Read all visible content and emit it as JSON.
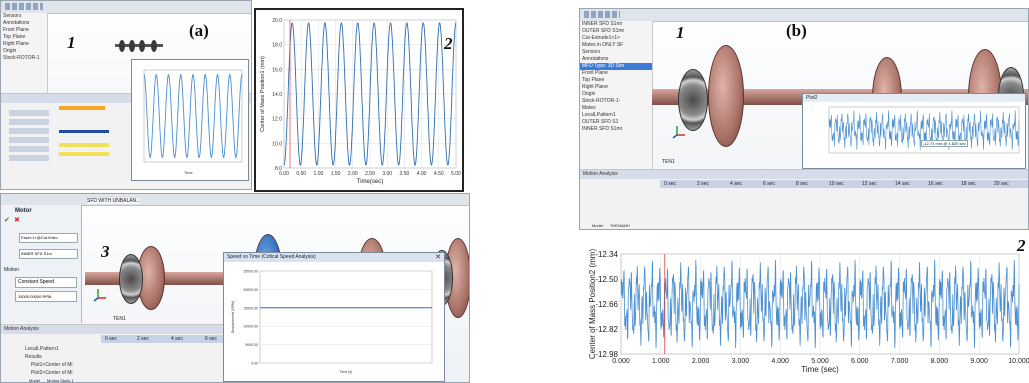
{
  "panels": {
    "a": {
      "label": "(a)",
      "step1": "1",
      "step2": "2",
      "step3": "3",
      "inset_plot_x_label": "Time",
      "plot2": {
        "ylabel": "Center of Mass Position1 (mm)",
        "xlabel": "Time(sec)",
        "yticks": [
          "20.0",
          "18.0",
          "16.0",
          "14.0",
          "12.0",
          "10.0",
          "8.0"
        ],
        "xticks": [
          "0.00",
          "0.50",
          "1.00",
          "1.50",
          "2.00",
          "2.50",
          "3.00",
          "3.50",
          "4.00",
          "4.50",
          "5.00"
        ]
      },
      "motor": {
        "title": "Motor",
        "mass_field": "Face<1>@Cut-Extru",
        "component_field": "INNER SFD S1m",
        "motion_section": "Motion",
        "speed_mode": "Constant Speed",
        "speed_value": "15000.00000 RPM"
      },
      "timeline": {
        "tab_motion": "Motion Analysis",
        "secs": [
          "0 sec",
          "2 sec",
          "4 sec",
          "6 sec"
        ],
        "items": [
          "LocalLPattern1",
          "Results",
          "Plot1<Center of Mi",
          "Plot2<Center of Mi"
        ]
      },
      "tree_top": [
        "Sensors",
        "Annotations",
        "Front Plane",
        "Top Plane",
        "Right Plane",
        "Origin",
        "Stock-ROTOR-1"
      ],
      "header_sfd": "SFD WITH UNBALAN...",
      "component_label": "TEN1",
      "speed_plot": {
        "title": "Speed vs Time (Critical Speed Analysis)",
        "ylabel": "Displacement (RPM)",
        "xlabel": "Time (s)",
        "yticks": [
          "25000.00",
          "20000.00",
          "15000.00",
          "10000.00",
          "5000.00",
          "0.00"
        ]
      },
      "bottom_tabs": [
        "Model",
        "Motion Study 1"
      ]
    },
    "b": {
      "label": "(b)",
      "step1": "1",
      "step2": "2",
      "tree": [
        "INNER SFD S1mr",
        "OUTER SFD S1mr",
        "Cut-Extrude1<1>",
        "Mates in ONLY SF",
        "Sensors",
        "Annotations",
        "MFD Type: 3D Sim",
        "Front Plane",
        "Top Plane",
        "Right Plane",
        "Origin",
        "Stock-ROTOR-1-",
        "Mates",
        "LocalLPattern1",
        "OUTER SFD S1",
        "INNER SFD S1mr"
      ],
      "inset_title": "Plot2",
      "inset_annotation": "-12.74 mm @ 4.820 sec",
      "component_label": "TEN1",
      "timeline": {
        "tab_motion": "Motion Analysis",
        "secs": [
          "0 sec",
          "2 sec",
          "4 sec",
          "6 sec",
          "8 sec",
          "10 sec",
          "12 sec",
          "14 sec",
          "16 sec",
          "18 sec",
          "20 sec"
        ]
      },
      "bottom_tabs": [
        "Model",
        "THENAMH"
      ],
      "plot": {
        "ylabel": "Center of Mass Position2 (mm)",
        "xlabel": "Time (sec)",
        "yticks": [
          "-12.34",
          "-12.50",
          "-12.66",
          "-12.82",
          "-12.98"
        ],
        "xticks": [
          "0.000",
          "1.000",
          "2.000",
          "3.000",
          "4.000",
          "5.000",
          "6.000",
          "7.000",
          "8.000",
          "9.000",
          "10.000"
        ]
      }
    }
  },
  "colors": {
    "signal": "#2e6fb2",
    "signal_light": "#4a8fd0",
    "marker": "#e0403a",
    "grid": "#d9dee6"
  }
}
